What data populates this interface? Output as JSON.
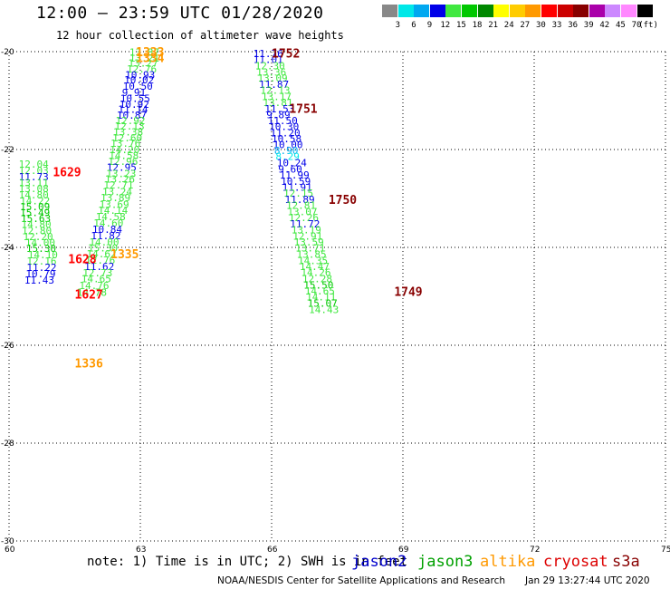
{
  "title": "12:00 – 23:59 UTC 01/28/2020",
  "subtitle": "12 hour collection of altimeter wave heights",
  "colorbar": {
    "unit_label": "(ft)",
    "ticks": [
      "3",
      "6",
      "9",
      "12",
      "15",
      "18",
      "21",
      "24",
      "27",
      "30",
      "33",
      "36",
      "39",
      "42",
      "45",
      "70"
    ],
    "colors": [
      "#888888",
      "#00e8e8",
      "#00a8f0",
      "#0000e8",
      "#40e840",
      "#00c800",
      "#008800",
      "#ffff00",
      "#ffcc00",
      "#ff9900",
      "#ff0000",
      "#cc0000",
      "#880000",
      "#aa00aa",
      "#cc88ff",
      "#ff88ff",
      "#000000"
    ]
  },
  "chart_data": {
    "type": "scatter",
    "title": "12:00 – 23:59 UTC 01/28/2020",
    "subtitle": "12 hour collection of altimeter wave heights",
    "xlim": [
      60,
      75
    ],
    "ylim": [
      -30,
      -20
    ],
    "x_ticks": [
      "60",
      "63",
      "66",
      "69",
      "72",
      "75"
    ],
    "y_ticks": [
      "-20",
      "-22",
      "-24",
      "-26",
      "-28",
      "-30"
    ],
    "grid": true,
    "legend": [
      "jason2",
      "jason3",
      "altika",
      "cryosat",
      "s3a"
    ],
    "series": [
      {
        "name": "track-a",
        "points": [
          [
            62.75,
            -20.01,
            "13.87",
            "#40e840"
          ],
          [
            62.75,
            -20.13,
            "13.21",
            "#40e840"
          ],
          [
            62.72,
            -20.23,
            "13.27",
            "#40e840"
          ],
          [
            62.69,
            -20.35,
            "12.76",
            "#40e840"
          ],
          [
            62.65,
            -20.47,
            "10.93",
            "#0000e8"
          ],
          [
            62.63,
            -20.57,
            "10.02",
            "#0000e8"
          ],
          [
            62.6,
            -20.7,
            "10.50",
            "#0000e8"
          ],
          [
            62.58,
            -20.83,
            "9.91",
            "#0000e8"
          ],
          [
            62.54,
            -20.95,
            "10.55",
            "#0000e8"
          ],
          [
            62.52,
            -21.07,
            "10.92",
            "#0000e8"
          ],
          [
            62.49,
            -21.18,
            "11.14",
            "#0000e8"
          ],
          [
            62.46,
            -21.3,
            "10.87",
            "#0000e8"
          ],
          [
            62.43,
            -21.41,
            "12.92",
            "#40e840"
          ],
          [
            62.41,
            -21.52,
            "12.13",
            "#40e840"
          ],
          [
            62.38,
            -21.64,
            "13.38",
            "#40e840"
          ],
          [
            62.36,
            -21.76,
            "12.60",
            "#40e840"
          ],
          [
            62.32,
            -21.87,
            "13.76",
            "#40e840"
          ],
          [
            62.3,
            -22.0,
            "14.20",
            "#40e840"
          ],
          [
            62.28,
            -22.12,
            "14.58",
            "#40e840"
          ],
          [
            62.26,
            -22.24,
            "12.96",
            "#40e840"
          ],
          [
            62.23,
            -22.36,
            "12.95",
            "#0000e8"
          ],
          [
            62.22,
            -22.49,
            "13.23",
            "#40e840"
          ],
          [
            62.19,
            -22.6,
            "13.26",
            "#40e840"
          ],
          [
            62.16,
            -22.72,
            "12.71",
            "#40e840"
          ],
          [
            62.13,
            -22.86,
            "13.24",
            "#40e840"
          ],
          [
            62.09,
            -22.98,
            "13.89",
            "#40e840"
          ],
          [
            62.06,
            -23.12,
            "13.69",
            "#40e840"
          ],
          [
            62.03,
            -23.24,
            "14.14",
            "#40e840"
          ],
          [
            61.98,
            -23.37,
            "14.58",
            "#40e840"
          ],
          [
            61.93,
            -23.5,
            "14.60",
            "#40e840"
          ],
          [
            61.9,
            -23.63,
            "10.84",
            "#0000e8"
          ],
          [
            61.87,
            -23.76,
            "11.82",
            "#0000e8"
          ],
          [
            61.83,
            -23.89,
            "14.00",
            "#40e840"
          ],
          [
            61.8,
            -24.01,
            "15.30",
            "#40e840"
          ],
          [
            61.77,
            -24.13,
            "14.62",
            "#40e840"
          ],
          [
            61.74,
            -24.26,
            "12.76",
            "#40e840"
          ],
          [
            61.72,
            -24.39,
            "11.62",
            "#0000e8"
          ],
          [
            61.68,
            -24.52,
            "12.73",
            "#40e840"
          ],
          [
            61.65,
            -24.64,
            "14.65",
            "#40e840"
          ],
          [
            61.6,
            -24.78,
            "14.76",
            "#40e840"
          ],
          [
            61.55,
            -24.92,
            "14.78",
            "#40e840"
          ]
        ],
        "times": [
          [
            62.9,
            -20.0,
            "1333",
            "#ff9900"
          ],
          [
            62.9,
            -20.12,
            "1334",
            "#ff9900"
          ],
          [
            62.32,
            -24.13,
            "1335",
            "#ff9900"
          ],
          [
            61.5,
            -26.36,
            "1336",
            "#ff9900"
          ]
        ]
      },
      {
        "name": "track-b",
        "points": [
          [
            60.22,
            -22.3,
            "12.04",
            "#40e840"
          ],
          [
            60.22,
            -22.43,
            "12.03",
            "#40e840"
          ],
          [
            60.22,
            -22.56,
            "11.73",
            "#0000e8"
          ],
          [
            60.22,
            -22.68,
            "13.11",
            "#40e840"
          ],
          [
            60.22,
            -22.8,
            "13.08",
            "#40e840"
          ],
          [
            60.22,
            -22.93,
            "14.80",
            "#40e840"
          ],
          [
            60.25,
            -23.05,
            "14.22",
            "#40e840"
          ],
          [
            60.25,
            -23.17,
            "15.09",
            "#00c800"
          ],
          [
            60.25,
            -23.29,
            "15.49",
            "#00c800"
          ],
          [
            60.27,
            -23.41,
            "15.63",
            "#00c800"
          ],
          [
            60.28,
            -23.53,
            "14.80",
            "#40e840"
          ],
          [
            60.29,
            -23.66,
            "12.80",
            "#40e840"
          ],
          [
            60.32,
            -23.78,
            "12.20",
            "#40e840"
          ],
          [
            60.37,
            -23.9,
            "14.00",
            "#40e840"
          ],
          [
            60.39,
            -24.02,
            "15.30",
            "#00c800"
          ],
          [
            60.43,
            -24.15,
            "14.10",
            "#40e840"
          ],
          [
            60.4,
            -24.28,
            "12.16",
            "#40e840"
          ],
          [
            60.4,
            -24.41,
            "11.22",
            "#0000e8"
          ],
          [
            60.38,
            -24.54,
            "10.79",
            "#0000e8"
          ],
          [
            60.35,
            -24.67,
            "11.43",
            "#0000e8"
          ]
        ],
        "times": [
          [
            61.0,
            -22.45,
            "1629",
            "#ff0000"
          ],
          [
            61.35,
            -24.23,
            "1628",
            "#ff0000"
          ],
          [
            61.5,
            -24.95,
            "1627",
            "#ff0000"
          ]
        ]
      },
      {
        "name": "track-c",
        "points": [
          [
            65.58,
            -20.04,
            "11.76",
            "#0000e8"
          ],
          [
            65.58,
            -20.16,
            "11.01",
            "#0000e8"
          ],
          [
            65.62,
            -20.29,
            "12.30",
            "#40e840"
          ],
          [
            65.65,
            -20.42,
            "13.36",
            "#40e840"
          ],
          [
            65.68,
            -20.54,
            "13.09",
            "#40e840"
          ],
          [
            65.71,
            -20.67,
            "11.87",
            "#0000e8"
          ],
          [
            65.74,
            -20.79,
            "12.13",
            "#40e840"
          ],
          [
            65.77,
            -20.92,
            "13.17",
            "#40e840"
          ],
          [
            65.8,
            -21.04,
            "13.81",
            "#40e840"
          ],
          [
            65.84,
            -21.17,
            "11.53",
            "#0000e8"
          ],
          [
            65.88,
            -21.29,
            "9.89",
            "#0000e8"
          ],
          [
            65.91,
            -21.41,
            "11.50",
            "#0000e8"
          ],
          [
            65.94,
            -21.53,
            "10.30",
            "#0000e8"
          ],
          [
            65.97,
            -21.66,
            "11.20",
            "#0000e8"
          ],
          [
            66.0,
            -21.78,
            "10.58",
            "#0000e8"
          ],
          [
            66.03,
            -21.9,
            "10.00",
            "#0000e8"
          ],
          [
            66.06,
            -22.02,
            "8.90",
            "#00a8f0"
          ],
          [
            66.09,
            -22.14,
            "8.29",
            "#00e8e8"
          ],
          [
            66.12,
            -22.27,
            "10.24",
            "#0000e8"
          ],
          [
            66.15,
            -22.4,
            "9.60",
            "#0000e8"
          ],
          [
            66.18,
            -22.52,
            "11.99",
            "#0000e8"
          ],
          [
            66.21,
            -22.65,
            "10.59",
            "#0000e8"
          ],
          [
            66.24,
            -22.77,
            "11.91",
            "#0000e8"
          ],
          [
            66.27,
            -22.89,
            "12.15",
            "#40e840"
          ],
          [
            66.3,
            -23.02,
            "11.89",
            "#0000e8"
          ],
          [
            66.33,
            -23.14,
            "12.81",
            "#40e840"
          ],
          [
            66.36,
            -23.27,
            "13.07",
            "#40e840"
          ],
          [
            66.39,
            -23.39,
            "12.26",
            "#40e840"
          ],
          [
            66.42,
            -23.52,
            "11.72",
            "#0000e8"
          ],
          [
            66.45,
            -23.64,
            "13.19",
            "#40e840"
          ],
          [
            66.48,
            -23.77,
            "12.91",
            "#40e840"
          ],
          [
            66.51,
            -23.89,
            "13.59",
            "#40e840"
          ],
          [
            66.54,
            -24.01,
            "13.71",
            "#40e840"
          ],
          [
            66.57,
            -24.14,
            "13.85",
            "#40e840"
          ],
          [
            66.6,
            -24.27,
            "14.35",
            "#40e840"
          ],
          [
            66.64,
            -24.39,
            "14.47",
            "#40e840"
          ],
          [
            66.67,
            -24.51,
            "14.26",
            "#40e840"
          ],
          [
            66.7,
            -24.64,
            "12.28",
            "#40e840"
          ],
          [
            66.73,
            -24.77,
            "15.50",
            "#00c800"
          ],
          [
            66.76,
            -24.89,
            "14.65",
            "#40e840"
          ],
          [
            66.79,
            -25.01,
            "14.11",
            "#40e840"
          ],
          [
            66.82,
            -25.14,
            "15.07",
            "#00c800"
          ],
          [
            66.85,
            -25.27,
            "14.43",
            "#40e840"
          ]
        ],
        "times": [
          [
            66.0,
            -20.03,
            "1752",
            "#880000"
          ],
          [
            66.4,
            -21.16,
            "1751",
            "#880000"
          ],
          [
            67.3,
            -23.02,
            "1750",
            "#880000"
          ],
          [
            68.8,
            -24.9,
            "1749",
            "#880000"
          ]
        ]
      }
    ]
  },
  "footer": {
    "note": "note: 1) Time is in UTC; 2) SWH is in feet",
    "satellites": [
      {
        "name": "jason2",
        "color": "#0000cc"
      },
      {
        "name": "jason3",
        "color": "#00a000"
      },
      {
        "name": "altika",
        "color": "#ff9900"
      },
      {
        "name": "cryosat",
        "color": "#dd0000"
      },
      {
        "name": "s3a",
        "color": "#880000"
      }
    ],
    "credit": "NOAA/NESDIS Center for Satellite Applications and Research",
    "timestamp": "Jan 29 13:27:44 UTC 2020"
  }
}
